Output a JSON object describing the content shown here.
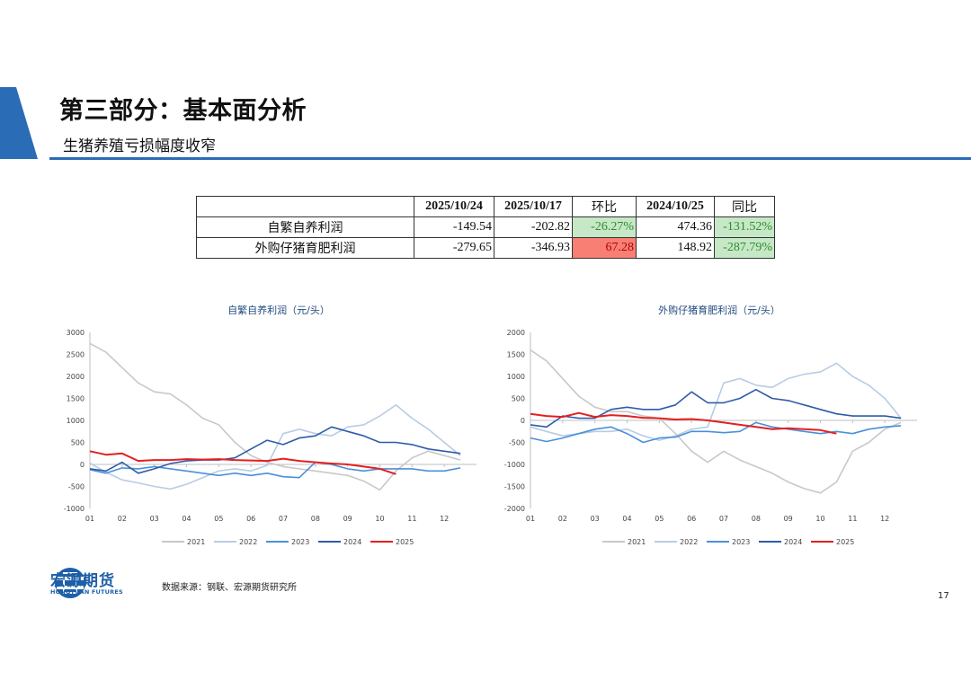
{
  "header": {
    "title": "第三部分：基本面分析",
    "subtitle": "生猪养殖亏损幅度收窄"
  },
  "table": {
    "headers": [
      "2025/10/24",
      "2025/10/17",
      "环比",
      "2024/10/25",
      "同比"
    ],
    "rows": [
      {
        "label": "自繁自养利润",
        "v1": "-149.54",
        "v2": "-202.82",
        "hb": "-26.27%",
        "v3": "474.36",
        "tb": "-131.52%"
      },
      {
        "label": "外购仔猪育肥利润",
        "v1": "-279.65",
        "v2": "-346.93",
        "hb": "67.28",
        "v3": "148.92",
        "tb": "-287.79%"
      }
    ],
    "colors": {
      "green_bg": "#c6e8c6",
      "green_text": "#2e8b2e",
      "red_bg": "#f77f74",
      "red_text": "#b20000"
    }
  },
  "chart_data": [
    {
      "type": "line",
      "title": "自繁自养利润（元/头）",
      "x_ticks": [
        "01",
        "02",
        "03",
        "04",
        "05",
        "06",
        "07",
        "08",
        "09",
        "10",
        "11",
        "12"
      ],
      "ylim": [
        -1000,
        3000
      ],
      "y_ticks": [
        3000,
        2500,
        2000,
        1500,
        1000,
        500,
        0,
        -500,
        -1000
      ],
      "x": [
        1,
        1.5,
        2,
        2.5,
        3,
        3.5,
        4,
        4.5,
        5,
        5.5,
        6,
        6.5,
        7,
        7.5,
        8,
        8.5,
        9,
        9.5,
        10,
        10.5,
        11,
        11.5,
        12,
        12.5
      ],
      "series": [
        {
          "name": "2021",
          "color": "#c8c8c8",
          "values": [
            2750,
            2550,
            2200,
            1850,
            1650,
            1600,
            1350,
            1050,
            900,
            500,
            200,
            50,
            -50,
            -100,
            -150,
            -200,
            -250,
            -380,
            -580,
            -150,
            150,
            300,
            200,
            100
          ]
        },
        {
          "name": "2022",
          "color": "#b8cce4",
          "values": [
            30,
            -180,
            -350,
            -420,
            -500,
            -560,
            -450,
            -300,
            -150,
            -100,
            -150,
            -20,
            700,
            800,
            700,
            650,
            850,
            900,
            1100,
            1350,
            1050,
            800,
            500,
            200
          ]
        },
        {
          "name": "2023",
          "color": "#4a90d9",
          "values": [
            -120,
            -200,
            -80,
            -100,
            -50,
            -100,
            -150,
            -200,
            -250,
            -200,
            -250,
            -200,
            -280,
            -300,
            50,
            0,
            -100,
            -150,
            -100,
            -100,
            -100,
            -150,
            -150,
            -80
          ]
        },
        {
          "name": "2024",
          "color": "#2e5ca8",
          "values": [
            -100,
            -150,
            50,
            -200,
            -100,
            20,
            80,
            100,
            100,
            150,
            350,
            550,
            450,
            600,
            650,
            850,
            750,
            650,
            500,
            500,
            450,
            350,
            300,
            250
          ]
        },
        {
          "name": "2025",
          "color": "#e41f1f",
          "values": [
            300,
            220,
            250,
            80,
            100,
            100,
            120,
            110,
            120,
            100,
            90,
            80,
            130,
            80,
            50,
            20,
            0,
            -50,
            -100,
            -220,
            null,
            null,
            null,
            null
          ]
        }
      ]
    },
    {
      "type": "line",
      "title": "外购仔猪育肥利润（元/头）",
      "x_ticks": [
        "01",
        "02",
        "03",
        "04",
        "05",
        "06",
        "07",
        "08",
        "09",
        "10",
        "11",
        "12"
      ],
      "ylim": [
        -2000,
        2000
      ],
      "y_ticks": [
        2000,
        1500,
        1000,
        500,
        0,
        -500,
        -1000,
        -1500,
        -2000
      ],
      "x": [
        1,
        1.5,
        2,
        2.5,
        3,
        3.5,
        4,
        4.5,
        5,
        5.5,
        6,
        6.5,
        7,
        7.5,
        8,
        8.5,
        9,
        9.5,
        10,
        10.5,
        11,
        11.5,
        12,
        12.5
      ],
      "series": [
        {
          "name": "2021",
          "color": "#c8c8c8",
          "values": [
            1600,
            1350,
            950,
            550,
            300,
            200,
            200,
            100,
            50,
            -300,
            -700,
            -950,
            -700,
            -900,
            -1050,
            -1200,
            -1400,
            -1550,
            -1650,
            -1400,
            -700,
            -500,
            -200,
            -50
          ]
        },
        {
          "name": "2022",
          "color": "#b8cce4",
          "values": [
            -150,
            -250,
            -350,
            -300,
            -250,
            -250,
            -200,
            -350,
            -450,
            -350,
            -200,
            -150,
            850,
            950,
            800,
            750,
            950,
            1050,
            1100,
            1300,
            1000,
            800,
            500,
            50
          ]
        },
        {
          "name": "2023",
          "color": "#4a90d9",
          "values": [
            -400,
            -480,
            -400,
            -300,
            -200,
            -150,
            -300,
            -500,
            -400,
            -380,
            -250,
            -250,
            -280,
            -250,
            -50,
            -150,
            -200,
            -250,
            -300,
            -250,
            -300,
            -200,
            -150,
            -120
          ]
        },
        {
          "name": "2024",
          "color": "#2e5ca8",
          "values": [
            -100,
            -150,
            100,
            50,
            50,
            250,
            300,
            250,
            250,
            350,
            650,
            400,
            400,
            500,
            700,
            500,
            450,
            350,
            250,
            150,
            100,
            100,
            100,
            50
          ]
        },
        {
          "name": "2025",
          "color": "#e41f1f",
          "values": [
            150,
            100,
            80,
            170,
            80,
            120,
            100,
            60,
            50,
            20,
            30,
            0,
            -50,
            -100,
            -150,
            -200,
            -180,
            -200,
            -220,
            -300,
            null,
            null,
            null,
            null
          ]
        }
      ]
    }
  ],
  "footer": {
    "source": "数据来源：钢联、宏源期货研究所",
    "page": "17",
    "logo_cn": "宏源期货",
    "logo_en": "HONGYUAN FUTURES",
    "brand_color": "#1e5fa8"
  }
}
